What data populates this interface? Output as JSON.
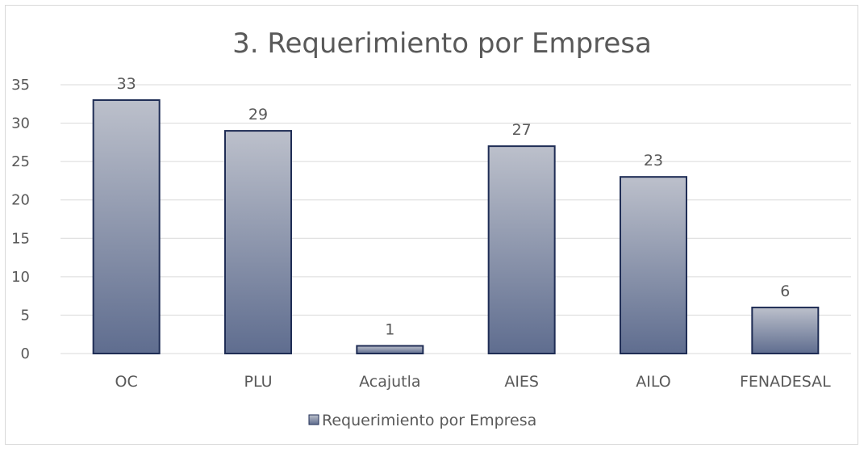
{
  "chart_data": {
    "type": "bar",
    "title": "3. Requerimiento por Empresa",
    "categories": [
      "OC",
      "PLU",
      "Acajutla",
      "AIES",
      "AILO",
      "FENADESAL"
    ],
    "series": [
      {
        "name": "Requerimiento por Empresa",
        "values": [
          33,
          29,
          1,
          27,
          23,
          6
        ]
      }
    ],
    "ylim": [
      0,
      35
    ],
    "yticks": [
      0,
      5,
      10,
      15,
      20,
      25,
      30,
      35
    ],
    "grid": true,
    "legend": "bottom",
    "colors": {
      "bar_top": "#bcc0cb",
      "bar_bottom": "#5f6d8f",
      "bar_border": "#1f2d55",
      "grid": "#d9d9d9",
      "text": "#595959"
    }
  }
}
